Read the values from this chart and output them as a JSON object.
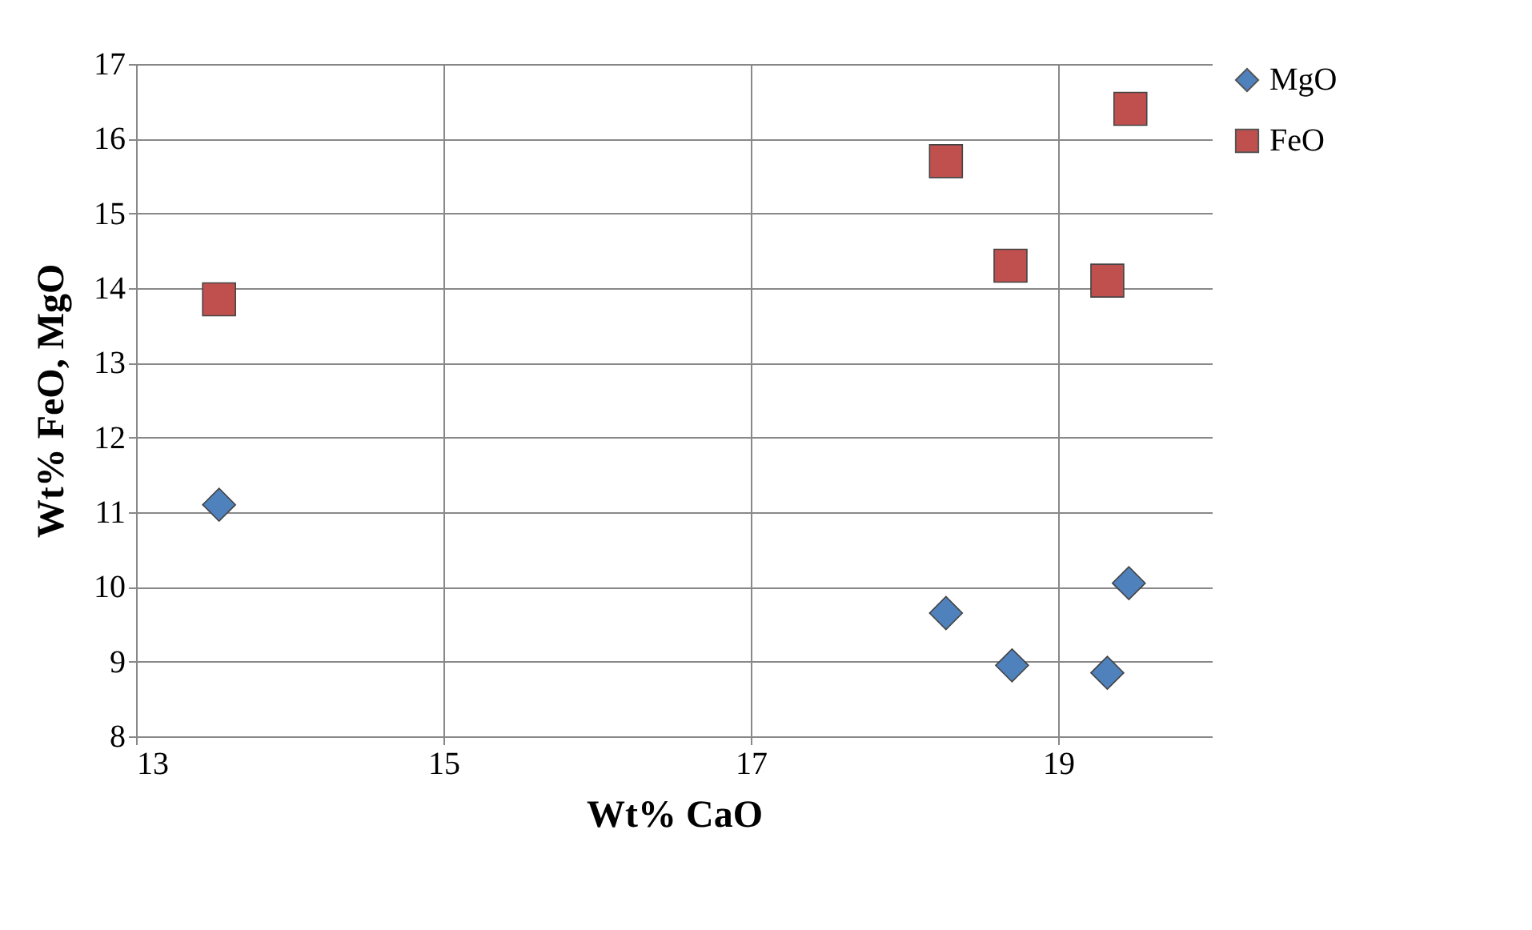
{
  "chart_data": {
    "type": "scatter",
    "xlabel": "Wt% CaO",
    "ylabel": "Wt% FeO, MgO",
    "xlim": [
      13,
      20
    ],
    "xticks": [
      13,
      15,
      17,
      19
    ],
    "ylim": [
      8,
      17
    ],
    "yticks": [
      8,
      9,
      10,
      11,
      12,
      13,
      14,
      15,
      16,
      17
    ],
    "grid": true,
    "legend": "right",
    "series": [
      {
        "name": "MgO",
        "color": "#4f81bd",
        "marker": "diamond",
        "x": [
          13.54,
          18.27,
          18.7,
          19.32,
          19.46
        ],
        "values": [
          11.1,
          9.65,
          8.95,
          8.85,
          10.05
        ]
      },
      {
        "name": "FeO",
        "color": "#c0504d",
        "marker": "square",
        "x": [
          13.54,
          18.27,
          18.69,
          19.32,
          19.47
        ],
        "values": [
          13.85,
          15.7,
          14.3,
          14.1,
          16.4
        ]
      }
    ]
  }
}
